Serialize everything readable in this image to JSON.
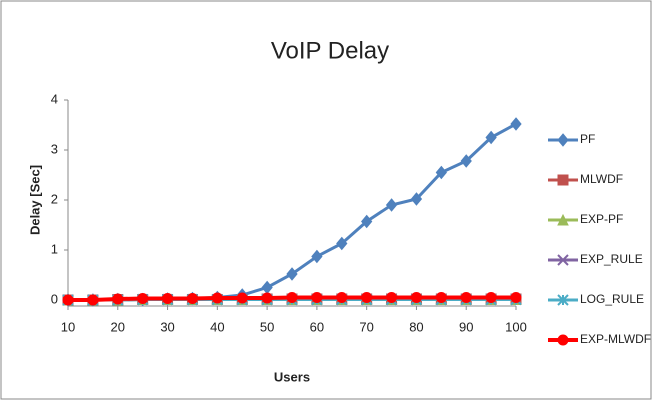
{
  "chart_data": {
    "type": "line",
    "title": "VoIP Delay",
    "x_label": "Users",
    "y_label": "Delay [Sec]",
    "x": [
      10,
      15,
      20,
      25,
      30,
      35,
      40,
      45,
      50,
      55,
      60,
      65,
      70,
      75,
      80,
      85,
      90,
      95,
      100
    ],
    "xlim": [
      10,
      100
    ],
    "xticks": [
      10,
      20,
      30,
      40,
      50,
      60,
      70,
      80,
      90,
      100
    ],
    "ylim": [
      0,
      4
    ],
    "yticks": [
      0,
      1,
      2,
      3,
      4
    ],
    "grid": false,
    "legend": "right",
    "series": [
      {
        "name": "PF",
        "color": "#4f81bd",
        "marker": "diamond",
        "values": [
          0,
          0,
          0.01,
          0.01,
          0.02,
          0.03,
          0.05,
          0.1,
          0.25,
          0.52,
          0.87,
          1.13,
          1.57,
          1.9,
          2.02,
          2.55,
          2.78,
          3.25,
          3.52
        ]
      },
      {
        "name": "MLWDF",
        "color": "#c0504d",
        "marker": "square",
        "values": [
          0,
          0,
          0.01,
          0.01,
          0.01,
          0.01,
          0.01,
          0.01,
          0.02,
          0.02,
          0.02,
          0.02,
          0.02,
          0.02,
          0.02,
          0.02,
          0.02,
          0.02,
          0.02
        ]
      },
      {
        "name": "EXP-PF",
        "color": "#9bbb59",
        "marker": "triangle",
        "values": [
          0,
          0,
          0,
          0.01,
          0.01,
          0.01,
          0.01,
          0.01,
          0.01,
          0.01,
          0.01,
          0.01,
          0.01,
          0.01,
          0.01,
          0.01,
          0.01,
          0.01,
          0.01
        ]
      },
      {
        "name": "EXP_RULE",
        "color": "#8064a2",
        "marker": "x",
        "values": [
          0,
          0,
          0,
          0.01,
          0.01,
          0.01,
          0.01,
          0.01,
          0.01,
          0.01,
          0.01,
          0.01,
          0.01,
          0.01,
          0.01,
          0.01,
          0.01,
          0.01,
          0.01
        ]
      },
      {
        "name": "LOG_RULE",
        "color": "#4bacc6",
        "marker": "star",
        "values": [
          0,
          0,
          0,
          0.01,
          0.01,
          0.01,
          0.01,
          0.01,
          0.01,
          0.01,
          0.01,
          0.01,
          0.01,
          0.01,
          0.01,
          0.01,
          0.01,
          0.01,
          0.01
        ]
      },
      {
        "name": "EXP-MLWDF",
        "color": "#ff0000",
        "marker": "circle",
        "values": [
          0,
          0,
          0.02,
          0.03,
          0.03,
          0.03,
          0.04,
          0.04,
          0.04,
          0.05,
          0.05,
          0.05,
          0.05,
          0.05,
          0.05,
          0.05,
          0.05,
          0.05,
          0.05
        ]
      }
    ]
  }
}
